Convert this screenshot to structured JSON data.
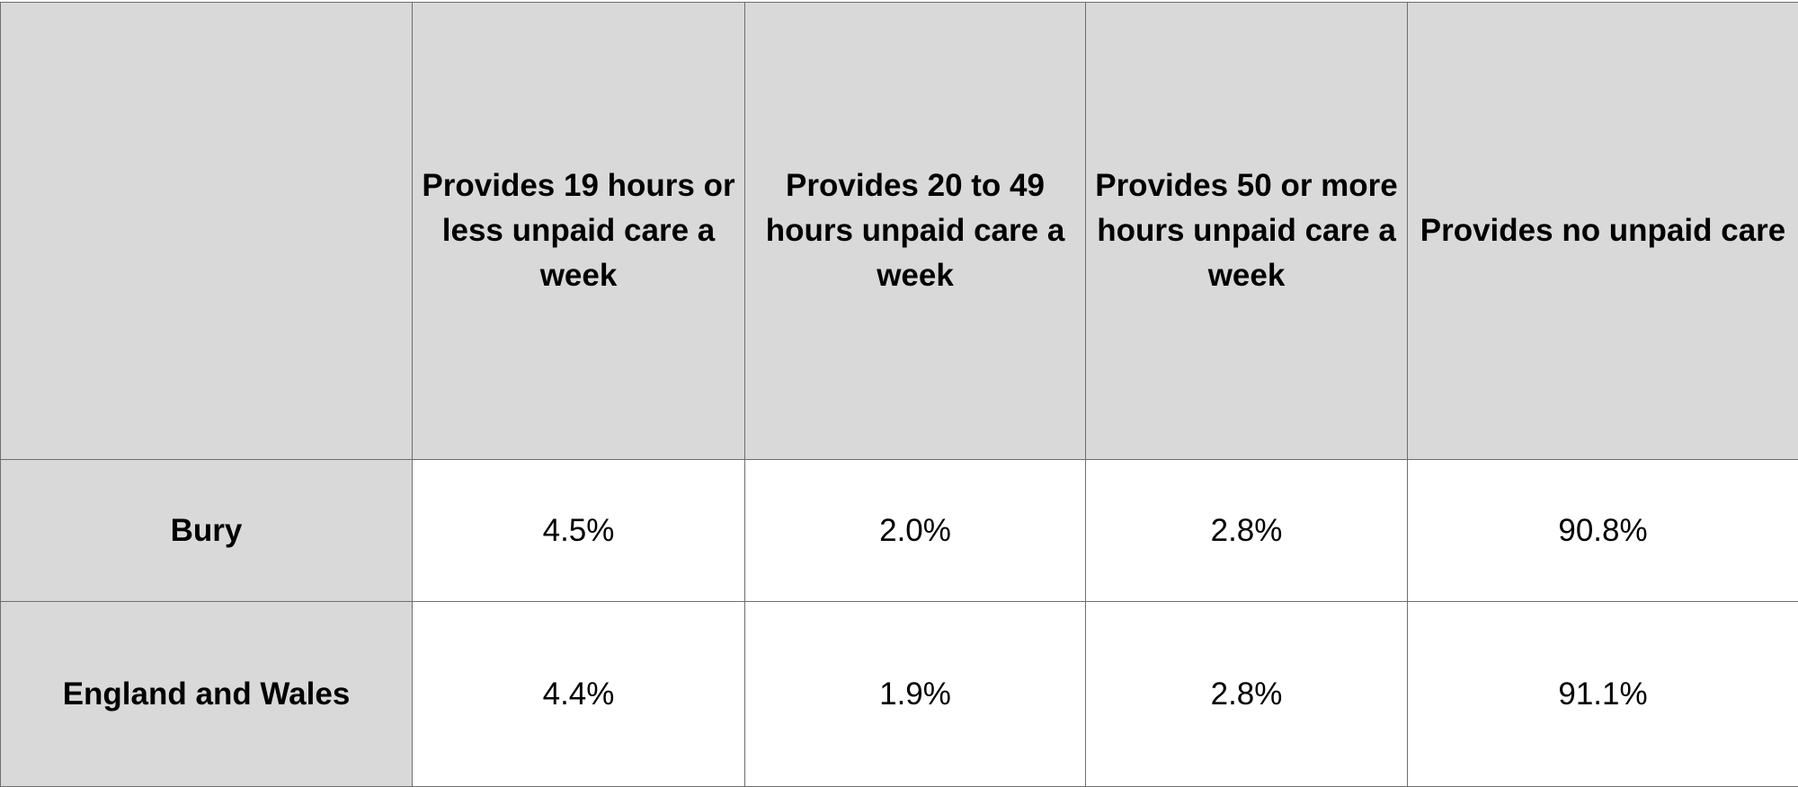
{
  "table": {
    "columns": [
      "",
      "Provides 19 hours or less unpaid care a week",
      "Provides 20 to 49 hours unpaid care a week",
      "Provides 50 or more hours unpaid care a week",
      "Provides no unpaid care"
    ],
    "rows": [
      {
        "label": "Bury",
        "values": [
          "4.5%",
          "2.0%",
          "2.8%",
          "90.8%"
        ]
      },
      {
        "label": "England and Wales",
        "values": [
          "4.4%",
          "1.9%",
          "2.8%",
          "91.1%"
        ]
      }
    ]
  },
  "colors": {
    "header_fill": "#d9d9d9",
    "cell_fill": "#ffffff",
    "border": "#6e6e6e"
  }
}
